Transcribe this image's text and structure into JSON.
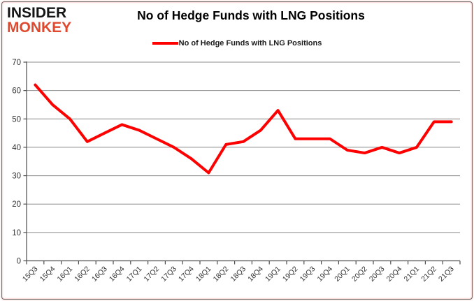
{
  "brand": {
    "line1": "INSIDER",
    "line2": "MONKEY"
  },
  "header": {
    "title": "No of Hedge Funds with LNG Positions"
  },
  "legend": {
    "label": "No of Hedge Funds with LNG Positions"
  },
  "colors": {
    "series_line": "#fe0000",
    "gridline": "#8c8c8c",
    "axis": "#4d4d4d",
    "tick_label": "#333333",
    "brand_red": "#df4a2e"
  },
  "chart_data": {
    "type": "line",
    "title": "No of Hedge Funds with LNG Positions",
    "categories": [
      "15Q3",
      "15Q4",
      "16Q1",
      "16Q2",
      "16Q3",
      "16Q4",
      "17Q1",
      "17Q2",
      "17Q3",
      "17Q4",
      "18Q1",
      "18Q2",
      "18Q3",
      "18Q4",
      "19Q1",
      "19Q2",
      "19Q3",
      "19Q4",
      "20Q1",
      "20Q2",
      "20Q3",
      "20Q4",
      "21Q1",
      "21Q2",
      "21Q3"
    ],
    "series": [
      {
        "name": "No of Hedge Funds with LNG Positions",
        "color": "#fe0000",
        "values": [
          62,
          55,
          50,
          42,
          45,
          48,
          46,
          43,
          40,
          36,
          31,
          41,
          42,
          46,
          53,
          43,
          43,
          43,
          39,
          38,
          40,
          38,
          40,
          49,
          49
        ]
      }
    ],
    "xlabel": "",
    "ylabel": "",
    "ylim": [
      0,
      70
    ],
    "ytick_step": 10,
    "yticks": [
      0,
      10,
      20,
      30,
      40,
      50,
      60,
      70
    ],
    "grid": true,
    "legend_position": "top-center",
    "x_label_rotation": -45
  }
}
